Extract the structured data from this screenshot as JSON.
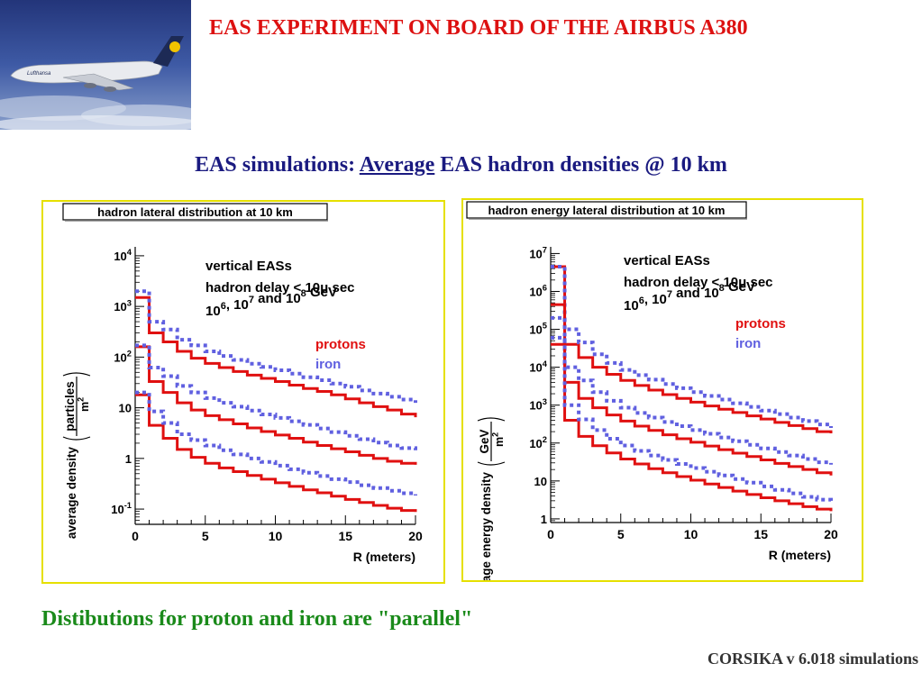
{
  "slide": {
    "title": "EAS EXPERIMENT ON BOARD OF THE AIRBUS A380",
    "subtitle_pre": "EAS simulations: ",
    "subtitle_underlined": "Average",
    "subtitle_post": " EAS hadron densities @ 10 km",
    "footer": "Distibutions for proton and iron are \"parallel\"",
    "credit": "CORSIKA v 6.018 simulations",
    "photo_logo_text": "Lufthansa"
  },
  "colors": {
    "protons": "#e01010",
    "iron": "#6060e0",
    "title": "#dd1111",
    "subtitle": "#1a1a80",
    "footer": "#1a8a1a",
    "frame": "#e6e000"
  },
  "chart_data": [
    {
      "type": "line",
      "step": true,
      "title": "hadron lateral distribution at 10 km",
      "xlabel": "R (meters)",
      "ylabel": "average density",
      "ylabel_unit_num": "particles",
      "ylabel_unit_den": "m",
      "ylabel_unit_exp": "2",
      "xlim": [
        0,
        20
      ],
      "ylog": true,
      "ylim": [
        0.05,
        15000
      ],
      "xticks": [
        "0",
        "5",
        "10",
        "15",
        "20"
      ],
      "xtick_values": [
        0,
        5,
        10,
        15,
        20
      ],
      "yticks": [
        {
          "v": 10000,
          "b": "10",
          "e": "4"
        },
        {
          "v": 1000,
          "b": "10",
          "e": "3"
        },
        {
          "v": 100,
          "b": "10",
          "e": "2"
        },
        {
          "v": 10,
          "b": "10",
          "e": ""
        },
        {
          "v": 1,
          "b": "1",
          "e": ""
        },
        {
          "v": 0.1,
          "b": "10",
          "e": "-1"
        }
      ],
      "annotations": {
        "line1": "vertical EASs",
        "line2": "hadron delay < 10μ sec",
        "energies": [
          {
            "b": "10",
            "e": "6"
          },
          {
            "s": ", "
          },
          {
            "b": "10",
            "e": "7"
          },
          {
            "s": " and "
          },
          {
            "b": "10",
            "e": "8"
          },
          {
            "s": " GeV"
          }
        ]
      },
      "legend": [
        {
          "name": "protons",
          "color": "#e01010"
        },
        {
          "name": "iron",
          "color": "#6060e0"
        }
      ],
      "x_edges": [
        0,
        1,
        2,
        3,
        4,
        5,
        6,
        7,
        8,
        9,
        10,
        11,
        12,
        13,
        14,
        15,
        16,
        17,
        18,
        19,
        20
      ],
      "series": [
        {
          "name": "protons",
          "energy": "1e8",
          "style": "solid",
          "values": [
            1500,
            300,
            200,
            130,
            95,
            75,
            62,
            52,
            44,
            38,
            33,
            28,
            24,
            21,
            18,
            15,
            12.5,
            10.5,
            9,
            7.5,
            6.5
          ]
        },
        {
          "name": "iron",
          "energy": "1e8",
          "style": "dotted",
          "values": [
            2000,
            500,
            350,
            220,
            170,
            130,
            105,
            88,
            74,
            64,
            55,
            47,
            40,
            35,
            30,
            26,
            22,
            19,
            16.5,
            14.5,
            12.5
          ]
        },
        {
          "name": "protons",
          "energy": "1e7",
          "style": "solid",
          "values": [
            160,
            33,
            20,
            12.5,
            9,
            7,
            5.8,
            4.8,
            4,
            3.4,
            2.9,
            2.5,
            2.1,
            1.8,
            1.55,
            1.35,
            1.15,
            1,
            0.88,
            0.8,
            0.75
          ]
        },
        {
          "name": "iron",
          "energy": "1e7",
          "style": "dotted",
          "values": [
            170,
            62,
            42,
            27,
            20,
            15.5,
            12.5,
            10.5,
            8.8,
            7.4,
            6.3,
            5.4,
            4.6,
            3.9,
            3.3,
            2.8,
            2.4,
            2.05,
            1.8,
            1.6,
            1.45
          ]
        },
        {
          "name": "protons",
          "energy": "1e6",
          "style": "solid",
          "values": [
            18,
            4.5,
            2.5,
            1.5,
            1.05,
            0.8,
            0.65,
            0.55,
            0.46,
            0.39,
            0.33,
            0.28,
            0.24,
            0.21,
            0.18,
            0.155,
            0.135,
            0.118,
            0.104,
            0.094,
            0.088
          ]
        },
        {
          "name": "iron",
          "energy": "1e6",
          "style": "dotted",
          "values": [
            20,
            8.5,
            5,
            3,
            2.3,
            1.8,
            1.45,
            1.2,
            1,
            0.85,
            0.72,
            0.61,
            0.52,
            0.45,
            0.39,
            0.34,
            0.295,
            0.26,
            0.23,
            0.205,
            0.185
          ]
        }
      ]
    },
    {
      "type": "line",
      "step": true,
      "title": "hadron energy lateral distribution at 10 km",
      "xlabel": "R (meters)",
      "ylabel": "average energy density",
      "ylabel_unit_num": "GeV",
      "ylabel_unit_den": "m",
      "ylabel_unit_exp": "2",
      "xlim": [
        0,
        20
      ],
      "ylog": true,
      "ylim": [
        0.8,
        15000000
      ],
      "xticks": [
        "0",
        "5",
        "10",
        "15",
        "20"
      ],
      "xtick_values": [
        0,
        5,
        10,
        15,
        20
      ],
      "yticks": [
        {
          "v": 10000000,
          "b": "10",
          "e": "7"
        },
        {
          "v": 1000000,
          "b": "10",
          "e": "6"
        },
        {
          "v": 100000,
          "b": "10",
          "e": "5"
        },
        {
          "v": 10000,
          "b": "10",
          "e": "4"
        },
        {
          "v": 1000,
          "b": "10",
          "e": "3"
        },
        {
          "v": 100,
          "b": "10",
          "e": "2"
        },
        {
          "v": 10,
          "b": "10",
          "e": ""
        },
        {
          "v": 1,
          "b": "1",
          "e": ""
        }
      ],
      "annotations": {
        "line1": "vertical EASs",
        "line2": "hadron delay < 10μ sec",
        "energies": [
          {
            "b": "10",
            "e": "6"
          },
          {
            "s": ", "
          },
          {
            "b": "10",
            "e": "7"
          },
          {
            "s": " and "
          },
          {
            "b": "10",
            "e": "8"
          },
          {
            "s": " GeV"
          }
        ]
      },
      "legend": [
        {
          "name": "protons",
          "color": "#e01010"
        },
        {
          "name": "iron",
          "color": "#6060e0"
        }
      ],
      "x_edges": [
        0,
        1,
        2,
        3,
        4,
        5,
        6,
        7,
        8,
        9,
        10,
        11,
        12,
        13,
        14,
        15,
        16,
        17,
        18,
        19,
        20
      ],
      "series": [
        {
          "name": "protons",
          "energy": "1e8",
          "style": "solid",
          "values": [
            4500000,
            40000,
            18000,
            10000,
            6500,
            4500,
            3300,
            2500,
            1900,
            1500,
            1200,
            950,
            780,
            640,
            520,
            430,
            350,
            290,
            240,
            200,
            180
          ]
        },
        {
          "name": "iron",
          "energy": "1e8",
          "style": "dotted",
          "values": [
            4500000,
            100000,
            45000,
            22000,
            13000,
            8500,
            6200,
            4700,
            3600,
            2800,
            2200,
            1750,
            1400,
            1120,
            900,
            720,
            580,
            470,
            380,
            310,
            250
          ]
        },
        {
          "name": "protons",
          "energy": "1e7",
          "style": "solid",
          "values": [
            450000,
            4000,
            1500,
            850,
            550,
            380,
            280,
            215,
            165,
            130,
            105,
            83,
            67,
            54,
            44,
            36,
            29,
            24,
            20,
            16.5,
            14
          ]
        },
        {
          "name": "iron",
          "energy": "1e7",
          "style": "dotted",
          "values": [
            200000,
            10000,
            4500,
            2200,
            1300,
            860,
            620,
            470,
            360,
            280,
            220,
            175,
            140,
            112,
            90,
            72,
            58,
            47,
            38,
            31,
            27
          ]
        },
        {
          "name": "protons",
          "energy": "1e6",
          "style": "solid",
          "values": [
            40000,
            400,
            150,
            85,
            55,
            38,
            28,
            21,
            16.5,
            13,
            10.5,
            8.3,
            6.7,
            5.4,
            4.4,
            3.6,
            3,
            2.5,
            2.1,
            1.8,
            1.6
          ]
        },
        {
          "name": "iron",
          "energy": "1e6",
          "style": "dotted",
          "values": [
            60000,
            1000,
            420,
            220,
            130,
            86,
            62,
            47,
            36,
            28,
            22,
            17.5,
            14,
            11.2,
            9,
            7.2,
            5.8,
            4.7,
            3.8,
            3.2,
            2.7
          ]
        }
      ]
    }
  ]
}
